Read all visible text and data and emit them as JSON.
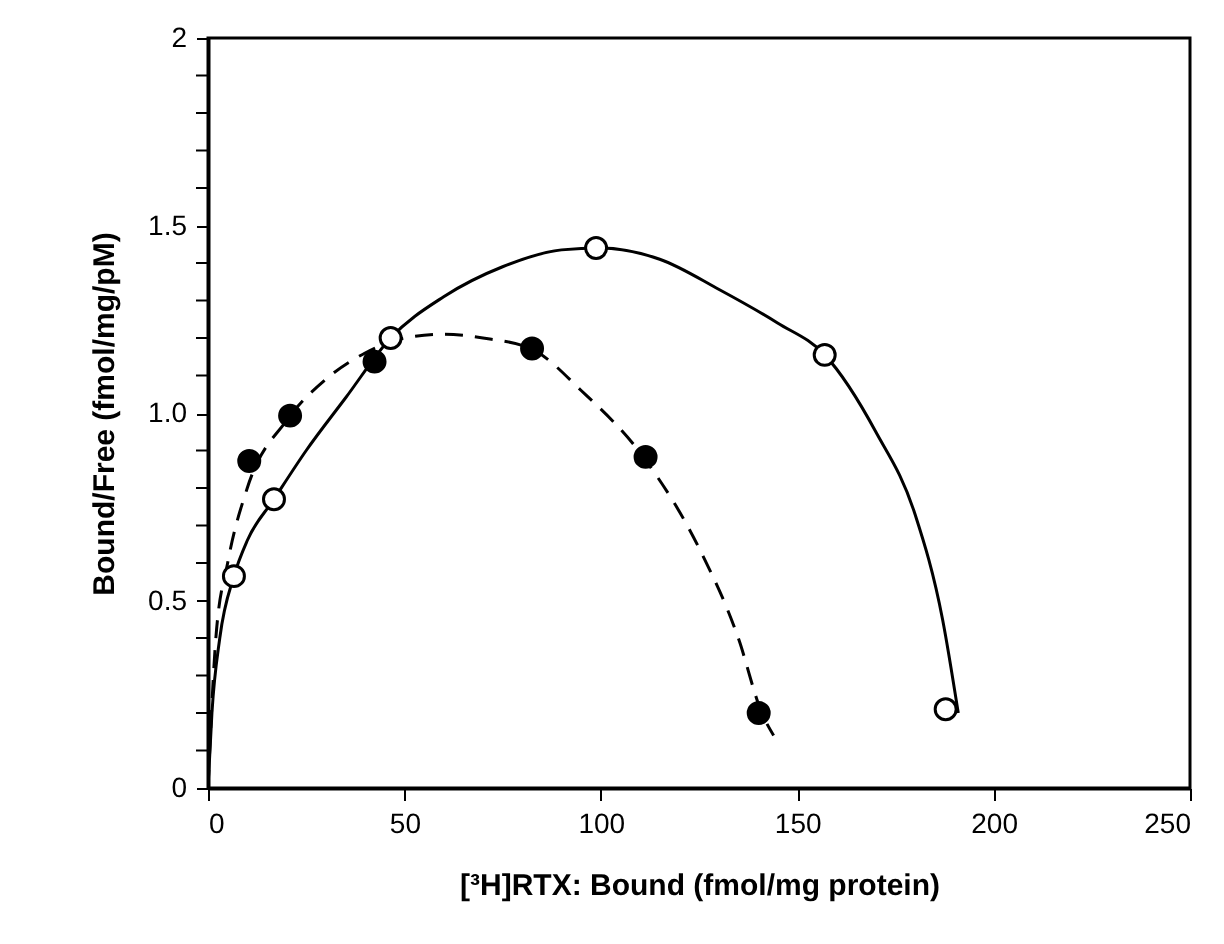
{
  "chart_data": {
    "type": "scatter",
    "xlabel": "[³H]RTX: Bound (fmol/mg protein)",
    "ylabel": "Bound/Free (fmol/mg/pM)",
    "xlim": [
      0,
      250
    ],
    "xticks": [
      0,
      50,
      100,
      150,
      200,
      250
    ],
    "ylim": [
      0,
      2
    ],
    "yticks": [
      0,
      {
        "value": 0.1,
        "label": null
      },
      {
        "value": 0.2,
        "label": null
      },
      {
        "value": 0.3,
        "label": null
      },
      {
        "value": 0.4,
        "label": null
      },
      {
        "value": 0.5,
        "label": "0.5"
      },
      {
        "value": 0.6,
        "label": null
      },
      {
        "value": 0.7,
        "label": null
      },
      {
        "value": 0.8,
        "label": null
      },
      {
        "value": 0.9,
        "label": null
      },
      {
        "value": 1.0,
        "label": "1.0"
      },
      {
        "value": 1.1,
        "label": null
      },
      {
        "value": 1.2,
        "label": null
      },
      {
        "value": 1.3,
        "label": null
      },
      {
        "value": 1.4,
        "label": null
      },
      {
        "value": 1.5,
        "label": "1.5"
      },
      {
        "value": 1.6,
        "label": null
      },
      {
        "value": 1.7,
        "label": null
      },
      {
        "value": 1.8,
        "label": null
      },
      {
        "value": 1.9,
        "label": null
      },
      2
    ],
    "grid": false,
    "marker": "circle",
    "series": [
      {
        "type": "line",
        "line_style": "solid",
        "marker": "none",
        "color": "#000000",
        "x": [
          0,
          1,
          3,
          6.6,
          10,
          16.8,
          25,
          35,
          46.5,
          60,
          75,
          90,
          100,
          115,
          130,
          145,
          157,
          170,
          180,
          187,
          191
        ],
        "values": [
          0,
          0.2,
          0.4,
          0.565,
          0.66,
          0.77,
          0.9,
          1.04,
          1.2,
          1.31,
          1.39,
          1.435,
          1.44,
          1.41,
          1.33,
          1.24,
          1.155,
          0.95,
          0.73,
          0.45,
          0.2
        ]
      },
      {
        "type": "line",
        "line_style": "dashed",
        "marker": "none",
        "color": "#000000",
        "x": [
          0,
          2,
          5,
          10,
          20,
          30,
          40,
          50,
          60,
          70,
          82.5,
          95,
          111,
          125,
          135,
          141,
          144
        ],
        "values": [
          0,
          0.4,
          0.6,
          0.8,
          0.98,
          1.09,
          1.16,
          1.2,
          1.21,
          1.2,
          1.17,
          1.06,
          0.88,
          0.64,
          0.4,
          0.2,
          0.14
        ]
      },
      {
        "type": "scatter",
        "color": "#ffffff",
        "x": [
          6.6,
          16.8,
          46.5,
          98.8,
          157,
          187.8
        ],
        "values": [
          0.565,
          0.77,
          1.2,
          1.44,
          1.155,
          0.21
        ]
      },
      {
        "type": "scatter",
        "color": "#000000",
        "x": [
          10.5,
          20.9,
          42.4,
          82.5,
          111.4,
          140.2
        ],
        "values": [
          0.872,
          0.993,
          1.137,
          1.172,
          0.883,
          0.2
        ]
      }
    ]
  }
}
